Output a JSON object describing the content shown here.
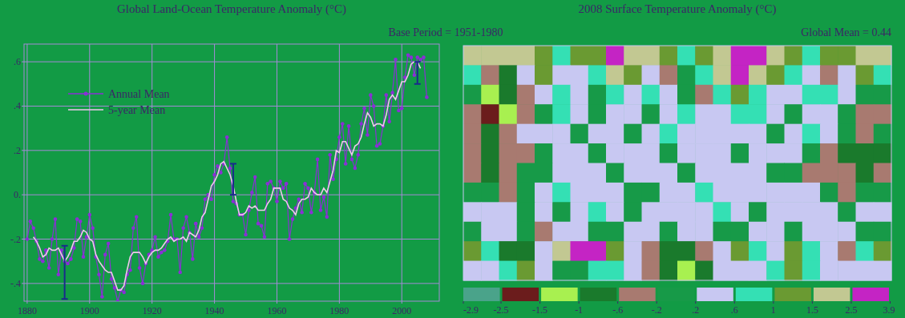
{
  "chart_data": [
    {
      "type": "line",
      "title": "Global Land-Ocean Temperature Anomaly (°C)",
      "subtitle": "Base Period = 1951-1980",
      "x": [
        1880,
        1881,
        1882,
        1883,
        1884,
        1885,
        1886,
        1887,
        1888,
        1889,
        1890,
        1891,
        1892,
        1893,
        1894,
        1895,
        1896,
        1897,
        1898,
        1899,
        1900,
        1901,
        1902,
        1903,
        1904,
        1905,
        1906,
        1907,
        1908,
        1909,
        1910,
        1911,
        1912,
        1913,
        1914,
        1915,
        1916,
        1917,
        1918,
        1919,
        1920,
        1921,
        1922,
        1923,
        1924,
        1925,
        1926,
        1927,
        1928,
        1929,
        1930,
        1931,
        1932,
        1933,
        1934,
        1935,
        1936,
        1937,
        1938,
        1939,
        1940,
        1941,
        1942,
        1943,
        1944,
        1945,
        1946,
        1947,
        1948,
        1949,
        1950,
        1951,
        1952,
        1953,
        1954,
        1955,
        1956,
        1957,
        1958,
        1959,
        1960,
        1961,
        1962,
        1963,
        1964,
        1965,
        1966,
        1967,
        1968,
        1969,
        1970,
        1971,
        1972,
        1973,
        1974,
        1975,
        1976,
        1977,
        1978,
        1979,
        1980,
        1981,
        1982,
        1983,
        1984,
        1985,
        1986,
        1987,
        1988,
        1989,
        1990,
        1991,
        1992,
        1993,
        1994,
        1995,
        1996,
        1997,
        1998,
        1999,
        2000,
        2001,
        2002,
        2003,
        2004,
        2005,
        2006,
        2007,
        2008
      ],
      "series": [
        {
          "name": "Annual Mean",
          "color": "#8a2fd6",
          "marker": "circle",
          "line_style": "solid",
          "values": [
            -0.2,
            -0.12,
            -0.15,
            -0.21,
            -0.29,
            -0.3,
            -0.25,
            -0.33,
            -0.2,
            -0.11,
            -0.36,
            -0.25,
            -0.3,
            -0.31,
            -0.29,
            -0.24,
            -0.11,
            -0.12,
            -0.28,
            -0.19,
            -0.09,
            -0.15,
            -0.28,
            -0.36,
            -0.46,
            -0.27,
            -0.22,
            -0.38,
            -0.42,
            -0.48,
            -0.43,
            -0.44,
            -0.36,
            -0.34,
            -0.15,
            -0.1,
            -0.33,
            -0.4,
            -0.31,
            -0.27,
            -0.25,
            -0.19,
            -0.28,
            -0.26,
            -0.25,
            -0.21,
            -0.09,
            -0.2,
            -0.2,
            -0.35,
            -0.15,
            -0.1,
            -0.17,
            -0.29,
            -0.13,
            -0.19,
            -0.15,
            -0.02,
            0.0,
            -0.02,
            0.09,
            0.13,
            0.1,
            0.14,
            0.26,
            0.12,
            -0.03,
            -0.04,
            -0.09,
            -0.09,
            -0.18,
            -0.07,
            0.01,
            0.08,
            -0.13,
            -0.14,
            -0.19,
            0.05,
            0.06,
            0.03,
            -0.03,
            0.06,
            0.03,
            0.05,
            -0.2,
            -0.11,
            -0.06,
            -0.02,
            -0.08,
            0.05,
            0.03,
            -0.08,
            0.01,
            0.16,
            -0.07,
            -0.01,
            -0.1,
            0.18,
            0.07,
            0.16,
            0.26,
            0.32,
            0.14,
            0.31,
            0.16,
            0.12,
            0.18,
            0.32,
            0.39,
            0.27,
            0.45,
            0.4,
            0.22,
            0.23,
            0.31,
            0.45,
            0.33,
            0.46,
            0.61,
            0.38,
            0.39,
            0.53,
            0.63,
            0.62,
            0.54,
            0.62,
            0.61,
            0.62,
            0.44
          ]
        },
        {
          "name": "5-year Mean",
          "color": "#f0c8ec",
          "marker": "none",
          "line_style": "solid",
          "values": [
            null,
            null,
            -0.19,
            -0.21,
            -0.24,
            -0.28,
            -0.27,
            -0.24,
            -0.25,
            -0.25,
            -0.24,
            -0.27,
            -0.3,
            -0.28,
            -0.25,
            -0.21,
            -0.21,
            -0.19,
            -0.16,
            -0.17,
            -0.2,
            -0.21,
            -0.27,
            -0.3,
            -0.32,
            -0.34,
            -0.35,
            -0.35,
            -0.39,
            -0.43,
            -0.43,
            -0.41,
            -0.34,
            -0.28,
            -0.26,
            -0.26,
            -0.26,
            -0.28,
            -0.31,
            -0.28,
            -0.26,
            -0.25,
            -0.25,
            -0.24,
            -0.22,
            -0.2,
            -0.19,
            -0.21,
            -0.2,
            -0.2,
            -0.19,
            -0.21,
            -0.17,
            -0.18,
            -0.19,
            -0.16,
            -0.1,
            -0.08,
            -0.02,
            0.04,
            0.06,
            0.09,
            0.14,
            0.15,
            0.12,
            0.09,
            0.04,
            -0.03,
            -0.09,
            -0.09,
            -0.08,
            -0.05,
            -0.06,
            -0.05,
            -0.07,
            -0.07,
            -0.07,
            -0.04,
            -0.02,
            0.03,
            0.03,
            0.03,
            -0.02,
            -0.03,
            -0.06,
            -0.07,
            -0.09,
            -0.04,
            -0.02,
            -0.02,
            -0.01,
            0.03,
            0.01,
            0.0,
            0.0,
            0.03,
            0.01,
            0.06,
            0.11,
            0.2,
            0.19,
            0.24,
            0.24,
            0.21,
            0.18,
            0.22,
            0.23,
            0.26,
            0.32,
            0.37,
            0.35,
            0.31,
            0.32,
            0.32,
            0.31,
            0.36,
            0.43,
            0.45,
            0.43,
            0.47,
            0.51,
            0.51,
            0.54,
            0.59,
            0.6,
            0.6,
            0.57,
            null,
            null
          ]
        }
      ],
      "error_bars": {
        "x": [
          1892,
          1946,
          2005
        ],
        "values": [
          -0.35,
          0.07,
          0.55
        ],
        "errors": [
          0.12,
          0.07,
          0.05
        ],
        "color": "#1a2a8c"
      },
      "xlim": [
        1879,
        2012
      ],
      "xticks": [
        1880,
        1900,
        1920,
        1940,
        1960,
        1980,
        2000
      ],
      "ylim": [
        -0.48,
        0.68
      ],
      "yticks": [
        {
          "value": -0.4,
          "label": "-.4"
        },
        {
          "value": -0.2,
          "label": "-.2"
        },
        {
          "value": 0,
          "label": "0."
        },
        {
          "value": 0.2,
          "label": ".2"
        },
        {
          "value": 0.4,
          "label": ".4"
        },
        {
          "value": 0.6,
          "label": ".6"
        }
      ],
      "grid": true,
      "legend": "upper-left"
    },
    {
      "type": "heatmap",
      "title": "2008 Surface Temperature Anomaly (°C)",
      "subtitle": "Global Mean = 0.44",
      "tick_labels": false,
      "cells": [
        [
          1.8,
          2.0,
          2.2,
          1.6,
          1.2,
          0.8,
          1.0,
          1.4,
          3.0,
          2.0,
          1.6,
          1.2,
          0.9,
          1.1,
          1.5,
          2.8,
          3.0,
          1.7,
          1.2,
          0.8,
          1.0,
          1.3,
          1.6,
          1.9
        ],
        [
          0.7,
          -0.4,
          -0.8,
          0.3,
          1.1,
          0.5,
          0.2,
          0.8,
          1.6,
          1.2,
          0.4,
          -0.3,
          0.1,
          0.9,
          1.7,
          3.1,
          2.2,
          1.3,
          0.6,
          0.2,
          -0.5,
          0.4,
          1.0,
          0.8
        ],
        [
          0.1,
          -1.2,
          -0.9,
          -0.3,
          0.4,
          0.9,
          0.5,
          0.1,
          0.6,
          0.3,
          0.7,
          0.5,
          0.1,
          -0.3,
          0.8,
          1.2,
          0.9,
          0.4,
          0.2,
          0.6,
          0.8,
          0.3,
          -0.2,
          0.0
        ],
        [
          -0.5,
          -2.0,
          -1.3,
          -0.5,
          0.0,
          0.7,
          0.3,
          -0.2,
          0.3,
          0.5,
          0.1,
          0.4,
          0.7,
          0.3,
          0.5,
          0.8,
          0.6,
          0.3,
          0.0,
          0.4,
          0.5,
          -0.1,
          -0.4,
          -0.3
        ],
        [
          -0.3,
          -0.7,
          -0.4,
          0.2,
          0.5,
          0.3,
          -0.1,
          0.2,
          0.4,
          0.1,
          0.3,
          0.6,
          0.4,
          0.2,
          0.3,
          0.5,
          0.2,
          0.1,
          0.4,
          0.6,
          0.3,
          0.0,
          -0.3,
          -0.1
        ],
        [
          -0.6,
          -0.8,
          -0.5,
          -0.3,
          0.1,
          0.3,
          0.4,
          0.1,
          0.3,
          0.5,
          0.2,
          0.0,
          0.3,
          0.4,
          0.2,
          0.1,
          0.3,
          0.4,
          0.2,
          -0.1,
          -0.4,
          -0.7,
          -0.9,
          -0.7
        ],
        [
          -0.4,
          -0.7,
          -0.6,
          -0.2,
          0.0,
          0.2,
          0.5,
          0.3,
          0.1,
          0.3,
          0.4,
          0.2,
          0.1,
          0.3,
          0.5,
          0.4,
          0.2,
          0.1,
          0.0,
          -0.3,
          -0.5,
          -0.6,
          -0.8,
          -0.5
        ],
        [
          0.1,
          -0.2,
          -0.3,
          0.1,
          0.4,
          0.6,
          0.3,
          0.2,
          0.4,
          0.1,
          -0.1,
          0.3,
          0.5,
          0.7,
          0.3,
          0.2,
          0.4,
          0.3,
          0.5,
          0.2,
          -0.1,
          -0.3,
          -0.2,
          0.0
        ],
        [
          0.3,
          0.5,
          0.2,
          -0.1,
          0.3,
          0.1,
          0.4,
          0.7,
          0.2,
          0.0,
          0.3,
          0.5,
          0.2,
          0.4,
          0.6,
          0.3,
          0.1,
          0.4,
          0.2,
          0.5,
          0.3,
          0.1,
          0.4,
          0.2
        ],
        [
          0.0,
          0.2,
          0.4,
          0.1,
          -0.3,
          0.2,
          0.5,
          0.1,
          -0.2,
          0.3,
          0.4,
          0.0,
          0.2,
          0.5,
          0.1,
          -0.1,
          0.3,
          0.2,
          0.0,
          0.3,
          0.5,
          0.2,
          -0.1,
          0.1
        ],
        [
          1.2,
          0.8,
          -0.7,
          -0.9,
          0.4,
          1.6,
          2.7,
          3.0,
          1.3,
          0.2,
          -0.5,
          -0.8,
          -0.9,
          -0.6,
          0.3,
          1.1,
          0.7,
          0.5,
          1.3,
          0.9,
          0.2,
          -0.3,
          0.6,
          1.0
        ],
        [
          0.5,
          0.3,
          0.7,
          1.0,
          0.4,
          -0.2,
          0.1,
          0.6,
          0.9,
          0.3,
          -0.4,
          -0.8,
          -1.1,
          -0.7,
          0.2,
          0.5,
          0.3,
          0.8,
          1.1,
          0.6,
          0.4,
          0.2,
          0.5,
          0.3
        ]
      ],
      "colorbar": {
        "range": [
          -2.9,
          3.9
        ],
        "ticks": [
          -2.9,
          -2.5,
          -1.5,
          -1,
          {
            "value": -0.6,
            "label": "-.6"
          },
          {
            "value": -0.2,
            "label": "-.2"
          },
          {
            "value": 0.2,
            "label": ".2"
          },
          {
            "value": 0.6,
            "label": ".6"
          },
          1,
          1.5,
          2.5,
          3.9
        ],
        "colors": [
          "#4aa38a",
          "#6b1c1c",
          "#a8f050",
          "#1a7a2c",
          "#a87a70",
          "#179a48",
          "#c8c8f2",
          "#34e0b4",
          "#6a9a32",
          "#c2c892",
          "#c424c4"
        ]
      }
    }
  ]
}
